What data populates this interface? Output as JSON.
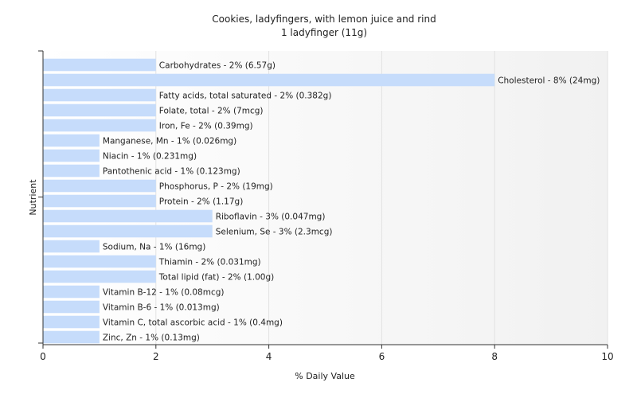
{
  "chart_data": {
    "type": "bar",
    "orientation": "horizontal",
    "title": "Cookies, ladyfingers, with lemon juice and rind",
    "subtitle": "1 ladyfinger (11g)",
    "xlabel": "% Daily Value",
    "ylabel": "Nutrient",
    "xlim": [
      0,
      10
    ],
    "xticks": [
      0,
      2,
      4,
      6,
      8,
      10
    ],
    "grid": true,
    "bar_color": "#c6dcfb",
    "categories": [
      "Carbohydrates - 2% (6.57g)",
      "Cholesterol - 8% (24mg)",
      "Fatty acids, total saturated - 2% (0.382g)",
      "Folate, total - 2% (7mcg)",
      "Iron, Fe - 2% (0.39mg)",
      "Manganese, Mn - 1% (0.026mg)",
      "Niacin - 1% (0.231mg)",
      "Pantothenic acid - 1% (0.123mg)",
      "Phosphorus, P - 2% (19mg)",
      "Protein - 2% (1.17g)",
      "Riboflavin - 3% (0.047mg)",
      "Selenium, Se - 3% (2.3mcg)",
      "Sodium, Na - 1% (16mg)",
      "Thiamin - 2% (0.031mg)",
      "Total lipid (fat) - 2% (1.00g)",
      "Vitamin B-12 - 1% (0.08mcg)",
      "Vitamin B-6 - 1% (0.013mg)",
      "Vitamin C, total ascorbic acid - 1% (0.4mg)",
      "Zinc, Zn - 1% (0.13mg)"
    ],
    "values": [
      2,
      8,
      2,
      2,
      2,
      1,
      1,
      1,
      2,
      2,
      3,
      3,
      1,
      2,
      2,
      1,
      1,
      1,
      1
    ]
  }
}
